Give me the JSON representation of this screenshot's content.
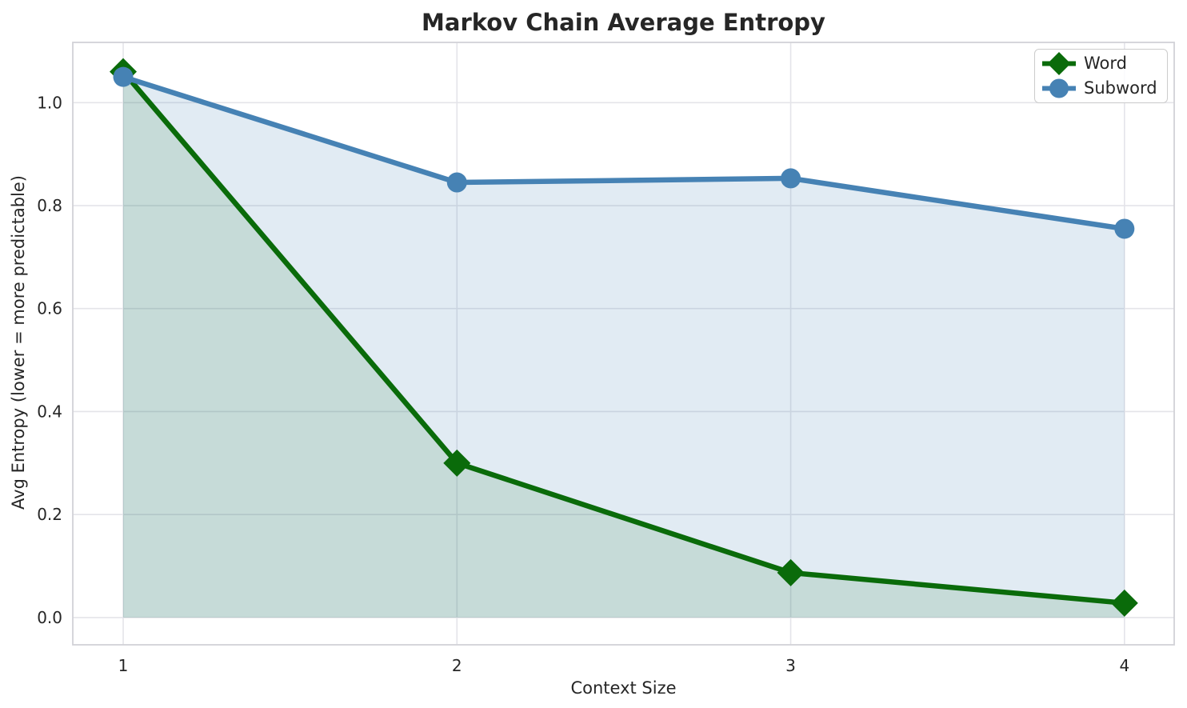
{
  "chart_data": {
    "type": "line",
    "title": "Markov Chain Average Entropy",
    "xlabel": "Context Size",
    "ylabel": "Avg Entropy (lower = more predictable)",
    "x": [
      1,
      2,
      3,
      4
    ],
    "series": [
      {
        "name": "Word",
        "marker": "diamond",
        "color": "#0a6b0a",
        "fill_color": "rgba(10,107,10,0.13)",
        "values": [
          1.06,
          0.3,
          0.087,
          0.028
        ]
      },
      {
        "name": "Subword",
        "marker": "circle",
        "color": "#4682b4",
        "fill_color": "rgba(70,130,180,0.16)",
        "values": [
          1.05,
          0.845,
          0.853,
          0.755
        ]
      }
    ],
    "area_fill_baseline": 0,
    "xlim": [
      0.849,
      4.149
    ],
    "ylim": [
      -0.053,
      1.117
    ],
    "xticks": [
      1,
      2,
      3,
      4
    ],
    "xtick_labels": [
      "1",
      "2",
      "3",
      "4"
    ],
    "yticks": [
      0.0,
      0.2,
      0.4,
      0.6,
      0.8,
      1.0
    ],
    "ytick_labels": [
      "0.0",
      "0.2",
      "0.4",
      "0.6",
      "0.8",
      "1.0"
    ],
    "grid": true,
    "legend_position": "upper right"
  },
  "style": {
    "grid_color": "#e4e4e9",
    "spine_color": "#d2d2d7",
    "text_color": "#262626",
    "background": "#ffffff"
  }
}
